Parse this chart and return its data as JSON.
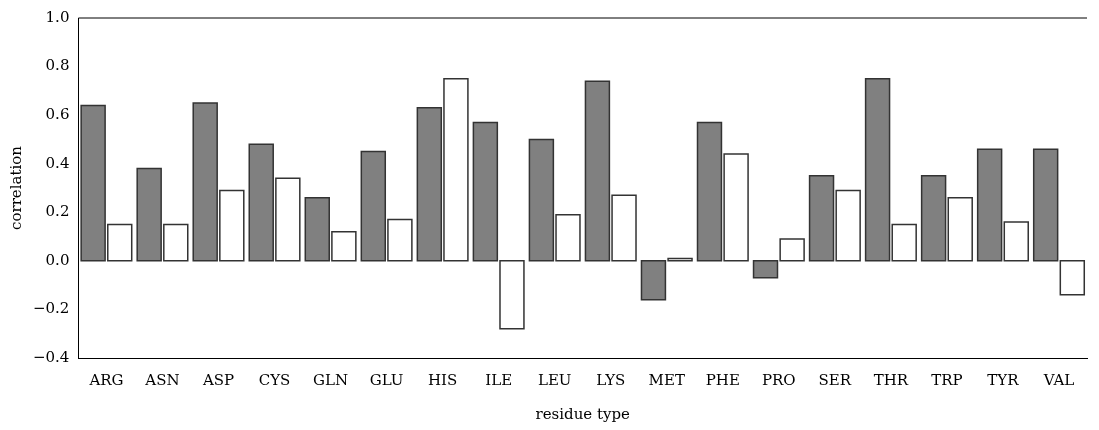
{
  "chart_data": {
    "type": "bar",
    "xlabel": "residue type",
    "ylabel": "correlation",
    "categories": [
      "ARG",
      "ASN",
      "ASP",
      "CYS",
      "GLN",
      "GLU",
      "HIS",
      "ILE",
      "LEU",
      "LYS",
      "MET",
      "PHE",
      "PRO",
      "SER",
      "THR",
      "TRP",
      "TYR",
      "VAL"
    ],
    "series": [
      {
        "color": "#808080",
        "values": [
          0.64,
          0.38,
          0.65,
          0.48,
          0.26,
          0.45,
          0.63,
          0.57,
          0.5,
          0.74,
          -0.16,
          0.57,
          -0.07,
          0.35,
          0.75,
          0.35,
          0.46,
          0.46
        ]
      },
      {
        "color": "#ffffff",
        "values": [
          0.15,
          0.15,
          0.29,
          0.34,
          0.12,
          0.17,
          0.75,
          -0.28,
          0.19,
          0.27,
          0.01,
          0.44,
          0.09,
          0.29,
          0.15,
          0.26,
          0.16,
          -0.14
        ]
      }
    ],
    "ylim": [
      -0.4,
      1.0
    ],
    "yticks": [
      {
        "value": -0.4,
        "label": "−0.4"
      },
      {
        "value": -0.2,
        "label": "−0.2"
      },
      {
        "value": 0,
        "label": "0.0"
      },
      {
        "value": 0.2,
        "label": "0.2"
      },
      {
        "value": 0.4,
        "label": "0.4"
      },
      {
        "value": 0.6,
        "label": "0.6"
      },
      {
        "value": 0.8,
        "label": "0.8"
      },
      {
        "value": 1.0,
        "label": "1.0"
      }
    ],
    "grid": false,
    "legend": false
  }
}
